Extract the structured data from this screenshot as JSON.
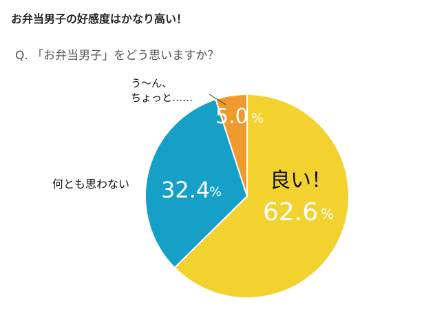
{
  "headline": "お弁当男子の好感度はかなり高い！",
  "question": "Q. 「お弁当男子」をどう思いますか？",
  "colors": {
    "yellow": "#f3d22f",
    "blue": "#16a0c7",
    "orange": "#ee9a2c"
  },
  "chart_data": {
    "type": "pie",
    "start": "12 o'clock, clockwise",
    "slices": [
      {
        "label": "良い！",
        "value": 62.6,
        "value_text": "62.6",
        "color": "#f3d22f"
      },
      {
        "label": "何とも思わない",
        "value": 32.4,
        "value_text": "32.4",
        "color": "#16a0c7"
      },
      {
        "label_lines": [
          "う〜ん、",
          "ちょっと……"
        ],
        "value": 5.0,
        "value_text": "5.0",
        "color": "#ee9a2c"
      }
    ],
    "unit": "%"
  }
}
